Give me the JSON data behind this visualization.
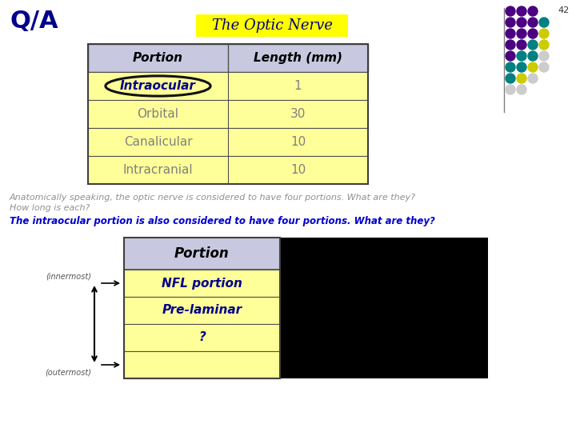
{
  "title": "The Optic Nerve",
  "title_bg": "#FFFF00",
  "slide_number": "42",
  "qa_label": "Q/A",
  "table1": {
    "headers": [
      "Portion",
      "Length (mm)"
    ],
    "rows": [
      [
        "Intraocular",
        "1"
      ],
      [
        "Orbital",
        "30"
      ],
      [
        "Canalicular",
        "10"
      ],
      [
        "Intracranial",
        "10"
      ]
    ],
    "header_bg": "#C8C8E0",
    "row_bg": "#FFFF99",
    "intraocular_color": "#00008B",
    "border_color": "#606060"
  },
  "question_text1": "Anatomically speaking, the optic nerve is considered to have four portions. What are they?",
  "question_text2": "How long is each?",
  "question_text3": "The intraocular portion is also considered to have four portions. What are they?",
  "table2": {
    "header": "Portion",
    "rows": [
      "NFL portion",
      "Pre-laminar",
      "?",
      ""
    ],
    "header_bg": "#C8C8E0",
    "row_bg": "#FFFF99",
    "text_color_blue": "#00008B",
    "border_color": "#606060"
  },
  "arrow_label_top": "(innermost)",
  "arrow_label_bottom": "(outermost)",
  "dots": [
    [
      648,
      18,
      "#4B0082",
      "#4B0082",
      "#4B0082"
    ],
    [
      648,
      32,
      "#4B0082",
      "#4B0082",
      "#008080"
    ],
    [
      648,
      46,
      "#4B0082",
      "#4B0082",
      "#4B0082",
      "#CCCC00"
    ],
    [
      648,
      60,
      "#4B0082",
      "#008080",
      "#008080",
      "#CCCC00"
    ],
    [
      648,
      74,
      "#008080",
      "#008080",
      "#CCCC00",
      "#CCCCCC"
    ],
    [
      648,
      88,
      "#008080",
      "#CCCC00",
      "#CCCC00",
      "#CCCCCC"
    ],
    [
      648,
      102,
      "#CCCC00",
      "#CCCC00",
      "#CCCCCC"
    ],
    [
      648,
      116,
      "#CCCCCC",
      "#CCCCCC"
    ]
  ],
  "background_color": "#FFFFFF"
}
